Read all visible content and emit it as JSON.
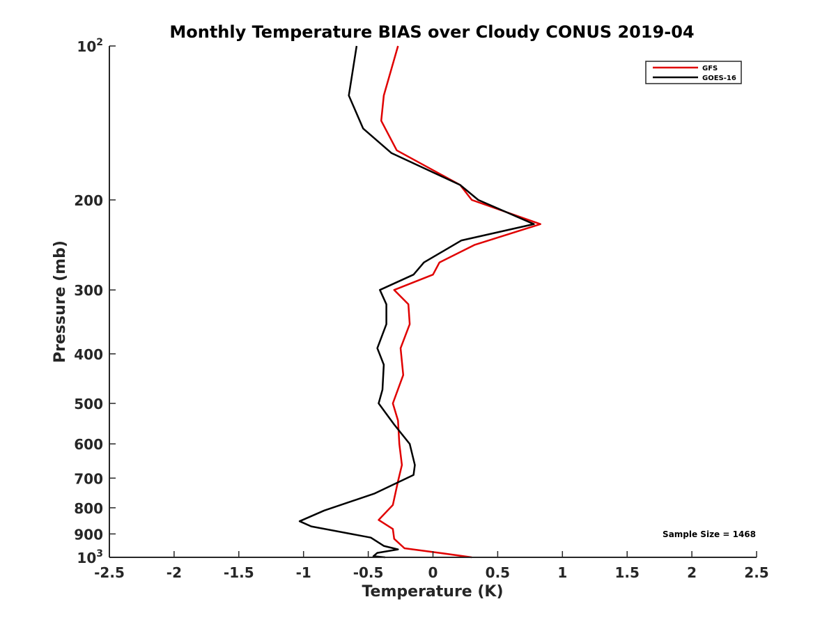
{
  "chart_data": {
    "type": "line",
    "title": "Monthly Temperature BIAS over Cloudy CONUS  2019-04",
    "xlabel": "Temperature (K)",
    "ylabel": "Pressure (mb)",
    "xlim": [
      -2.5,
      2.5
    ],
    "ylim": [
      100,
      1000
    ],
    "yscale": "log",
    "y_reversed": true,
    "grid": false,
    "legend_position": "top-right",
    "x_ticks": [
      -2.5,
      -2,
      -1.5,
      -1,
      -0.5,
      0,
      0.5,
      1,
      1.5,
      2,
      2.5
    ],
    "x_tick_labels": [
      "-2.5",
      "-2",
      "-1.5",
      "-1",
      "-0.5",
      "0",
      "0.5",
      "1",
      "1.5",
      "2",
      "2.5"
    ],
    "y_ticks": [
      {
        "value": 100,
        "base": "10",
        "exp": "2"
      },
      {
        "value": 200,
        "label": "200"
      },
      {
        "value": 300,
        "label": "300"
      },
      {
        "value": 400,
        "label": "400"
      },
      {
        "value": 500,
        "label": "500"
      },
      {
        "value": 600,
        "label": "600"
      },
      {
        "value": 700,
        "label": "700"
      },
      {
        "value": 800,
        "label": "800"
      },
      {
        "value": 900,
        "label": "900"
      },
      {
        "value": 1000,
        "base": "10",
        "exp": "3"
      }
    ],
    "annotation": "Sample Size = 1468",
    "series": [
      {
        "name": "GFS",
        "color": "#e00000",
        "points": [
          {
            "x": -0.27,
            "p": 100
          },
          {
            "x": -0.38,
            "p": 125
          },
          {
            "x": -0.4,
            "p": 140
          },
          {
            "x": -0.28,
            "p": 160
          },
          {
            "x": 0.21,
            "p": 187
          },
          {
            "x": 0.3,
            "p": 200
          },
          {
            "x": 0.83,
            "p": 223
          },
          {
            "x": 0.32,
            "p": 245
          },
          {
            "x": 0.05,
            "p": 265
          },
          {
            "x": 0.0,
            "p": 280
          },
          {
            "x": -0.3,
            "p": 300
          },
          {
            "x": -0.19,
            "p": 320
          },
          {
            "x": -0.18,
            "p": 350
          },
          {
            "x": -0.25,
            "p": 390
          },
          {
            "x": -0.23,
            "p": 440
          },
          {
            "x": -0.31,
            "p": 500
          },
          {
            "x": -0.27,
            "p": 540
          },
          {
            "x": -0.26,
            "p": 600
          },
          {
            "x": -0.24,
            "p": 660
          },
          {
            "x": -0.27,
            "p": 710
          },
          {
            "x": -0.31,
            "p": 790
          },
          {
            "x": -0.42,
            "p": 845
          },
          {
            "x": -0.31,
            "p": 880
          },
          {
            "x": -0.3,
            "p": 920
          },
          {
            "x": -0.22,
            "p": 960
          },
          {
            "x": 0.05,
            "p": 980
          },
          {
            "x": 0.3,
            "p": 1000
          }
        ]
      },
      {
        "name": "GOES-16",
        "color": "#000000",
        "points": [
          {
            "x": -0.59,
            "p": 100
          },
          {
            "x": -0.65,
            "p": 125
          },
          {
            "x": -0.54,
            "p": 145
          },
          {
            "x": -0.32,
            "p": 162
          },
          {
            "x": 0.21,
            "p": 187
          },
          {
            "x": 0.35,
            "p": 200
          },
          {
            "x": 0.78,
            "p": 223
          },
          {
            "x": 0.22,
            "p": 240
          },
          {
            "x": -0.07,
            "p": 265
          },
          {
            "x": -0.15,
            "p": 280
          },
          {
            "x": -0.41,
            "p": 300
          },
          {
            "x": -0.36,
            "p": 320
          },
          {
            "x": -0.36,
            "p": 350
          },
          {
            "x": -0.43,
            "p": 390
          },
          {
            "x": -0.38,
            "p": 420
          },
          {
            "x": -0.39,
            "p": 470
          },
          {
            "x": -0.42,
            "p": 500
          },
          {
            "x": -0.3,
            "p": 550
          },
          {
            "x": -0.18,
            "p": 600
          },
          {
            "x": -0.14,
            "p": 660
          },
          {
            "x": -0.15,
            "p": 690
          },
          {
            "x": -0.45,
            "p": 750
          },
          {
            "x": -0.84,
            "p": 810
          },
          {
            "x": -1.03,
            "p": 850
          },
          {
            "x": -0.94,
            "p": 870
          },
          {
            "x": -0.48,
            "p": 915
          },
          {
            "x": -0.38,
            "p": 950
          },
          {
            "x": -0.27,
            "p": 965
          },
          {
            "x": -0.43,
            "p": 980
          },
          {
            "x": -0.46,
            "p": 995
          },
          {
            "x": -0.37,
            "p": 1000
          }
        ]
      }
    ]
  }
}
